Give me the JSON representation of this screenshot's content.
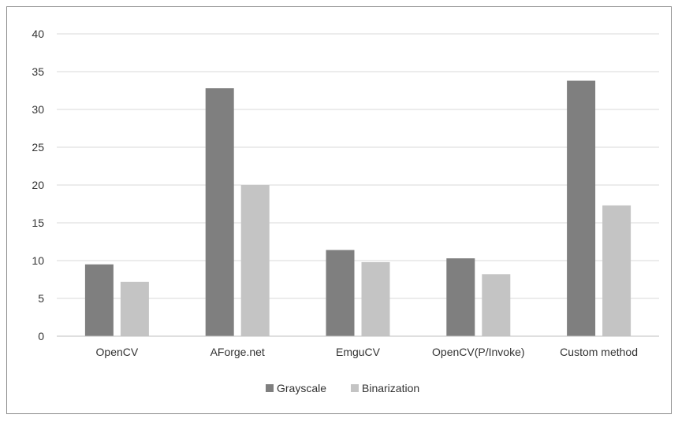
{
  "chart_data": {
    "type": "bar",
    "title": "",
    "xlabel": "",
    "ylabel": "",
    "categories": [
      "OpenCV",
      "AForge.net",
      "EmguCV",
      "OpenCV(P/Invoke)",
      "Custom method"
    ],
    "series": [
      {
        "name": "Grayscale",
        "values": [
          9.5,
          32.8,
          11.4,
          10.3,
          33.8
        ],
        "color": "#7f7f7f"
      },
      {
        "name": "Binarization",
        "values": [
          7.2,
          20.0,
          9.8,
          8.2,
          17.3
        ],
        "color": "#c4c4c4"
      }
    ],
    "ylim": [
      0,
      40
    ],
    "yticks": [
      0,
      5,
      10,
      15,
      20,
      25,
      30,
      35,
      40
    ],
    "grid": true,
    "legend_position": "bottom-center",
    "gridline_color": "#d9d9d9"
  }
}
